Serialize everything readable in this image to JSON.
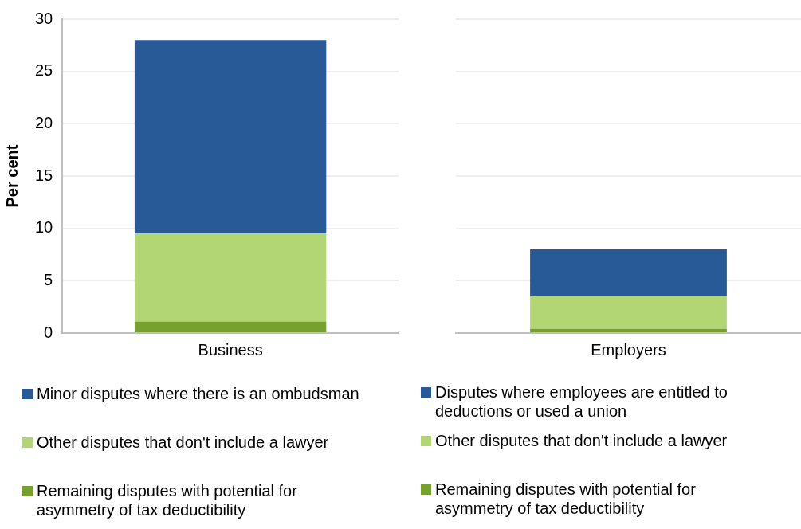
{
  "chart_data": [
    {
      "type": "bar",
      "stacked": true,
      "ylabel": "Per cent",
      "categories": [
        "Business"
      ],
      "ylim": [
        0,
        30
      ],
      "yticks": [
        0,
        5,
        10,
        15,
        20,
        25,
        30
      ],
      "grid": "y",
      "legend": "bottom",
      "series": [
        {
          "name": "Remaining disputes with potential for asymmetry of tax deductibility",
          "color": "#76a12f",
          "values": [
            1.1
          ]
        },
        {
          "name": "Other disputes that don't include a lawyer",
          "color": "#b3d675",
          "values": [
            8.4
          ]
        },
        {
          "name": "Minor disputes where there is an ombudsman",
          "color": "#285a98",
          "values": [
            18.5
          ]
        }
      ]
    },
    {
      "type": "bar",
      "stacked": true,
      "categories": [
        "Employers"
      ],
      "ylim": [
        0,
        30
      ],
      "yticks": [
        {
          "value": 0,
          "label": null
        },
        {
          "value": 5,
          "label": null
        },
        {
          "value": 10,
          "label": null
        },
        {
          "value": 15,
          "label": null
        },
        {
          "value": 20,
          "label": null
        },
        {
          "value": 25,
          "label": null
        },
        {
          "value": 30,
          "label": null
        }
      ],
      "tick_labels": "x",
      "grid": "y",
      "legend": "bottom",
      "series": [
        {
          "name": "Remaining disputes with potential for asymmetry of tax deductibility",
          "color": "#76a12f",
          "values": [
            0.4
          ]
        },
        {
          "name": "Other disputes that don't include a lawyer",
          "color": "#b3d675",
          "values": [
            3.1
          ]
        },
        {
          "name": "Disputes where employees are entitled to deductions or used a union",
          "color": "#285a98",
          "values": [
            4.5
          ]
        }
      ]
    }
  ]
}
